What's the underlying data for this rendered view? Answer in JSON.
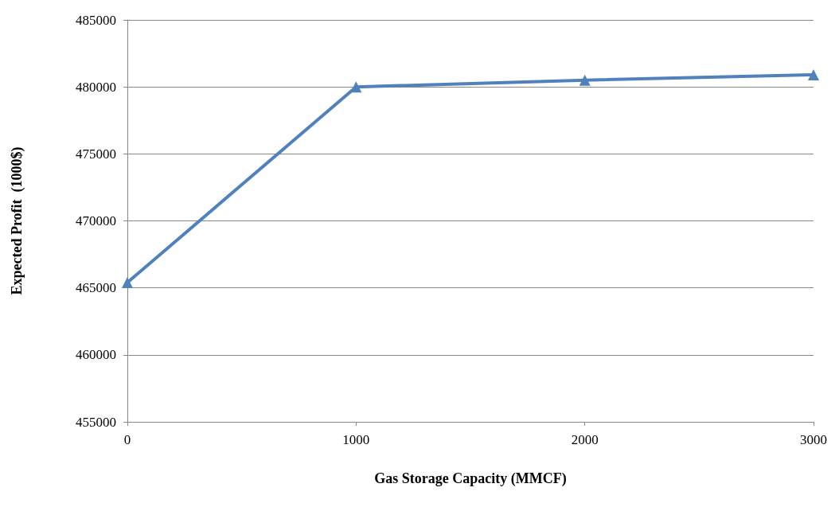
{
  "chart_data": {
    "type": "line",
    "xlabel": "Gas Storage Capacity (MMCF)",
    "ylabel": "Expected Profit  (1000$)",
    "x": [
      0,
      1000,
      2000,
      3000
    ],
    "series": [
      {
        "color": "#4f81bd",
        "values": [
          465400,
          480000,
          480500,
          480900
        ]
      }
    ],
    "xlim": [
      0,
      3000
    ],
    "xticks": [
      0,
      1000,
      2000,
      3000
    ],
    "ylim": [
      455000,
      485000
    ],
    "yticks": [
      455000,
      460000,
      465000,
      470000,
      475000,
      480000,
      485000
    ],
    "grid": "y",
    "marker": "triangle",
    "line_style": "solid"
  }
}
